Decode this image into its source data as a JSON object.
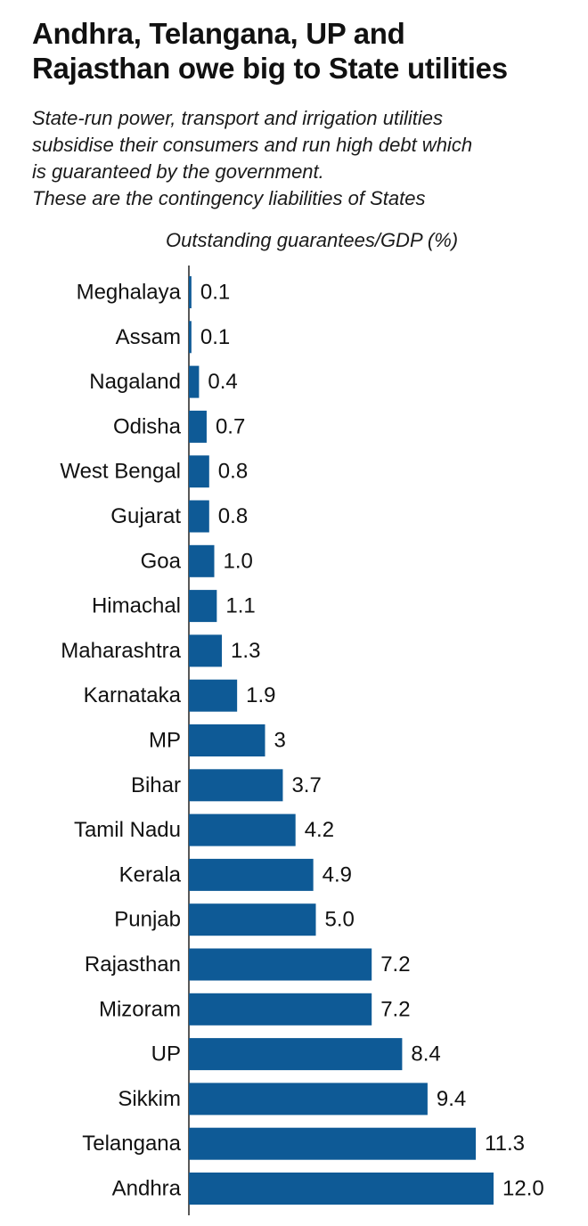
{
  "title_lines": [
    "Andhra, Telangana, UP and",
    "Rajasthan owe big to State utilities"
  ],
  "subtitle_lines": [
    "State-run power, transport and irrigation utilities",
    "subsidise their consumers and run high debt which",
    "is guaranteed by the government.",
    "These are the contingency liabilities of States"
  ],
  "chart_data": {
    "type": "bar",
    "orientation": "horizontal",
    "title": "Andhra, Telangana, UP and Rajasthan owe big to State utilities",
    "subtitle": "State-run power, transport and irrigation utilities subsidise their consumers and run high debt which is guaranteed by the government. These are the contingency liabilities of States",
    "xlabel": "Outstanding guarantees/GDP (%)",
    "ylabel": "",
    "categories": [
      "Meghalaya",
      "Assam",
      "Nagaland",
      "Odisha",
      "West Bengal",
      "Gujarat",
      "Goa",
      "Himachal",
      "Maharashtra",
      "Karnataka",
      "MP",
      "Bihar",
      "Tamil Nadu",
      "Kerala",
      "Punjab",
      "Rajasthan",
      "Mizoram",
      "UP",
      "Sikkim",
      "Telangana",
      "Andhra"
    ],
    "values": [
      0.1,
      0.1,
      0.4,
      0.7,
      0.8,
      0.8,
      1.0,
      1.1,
      1.3,
      1.9,
      3,
      3.7,
      4.2,
      4.9,
      5.0,
      7.2,
      7.2,
      8.4,
      9.4,
      11.3,
      12.0
    ],
    "value_labels": [
      "0.1",
      "0.1",
      "0.4",
      "0.7",
      "0.8",
      "0.8",
      "1.0",
      "1.1",
      "1.3",
      "1.9",
      "3",
      "3.7",
      "4.2",
      "4.9",
      "5.0",
      "7.2",
      "7.2",
      "8.4",
      "9.4",
      "11.3",
      "12.0"
    ],
    "xlim": [
      0,
      12.0
    ],
    "grid": false,
    "legend": "none",
    "bar_color": "#0e5a96"
  }
}
